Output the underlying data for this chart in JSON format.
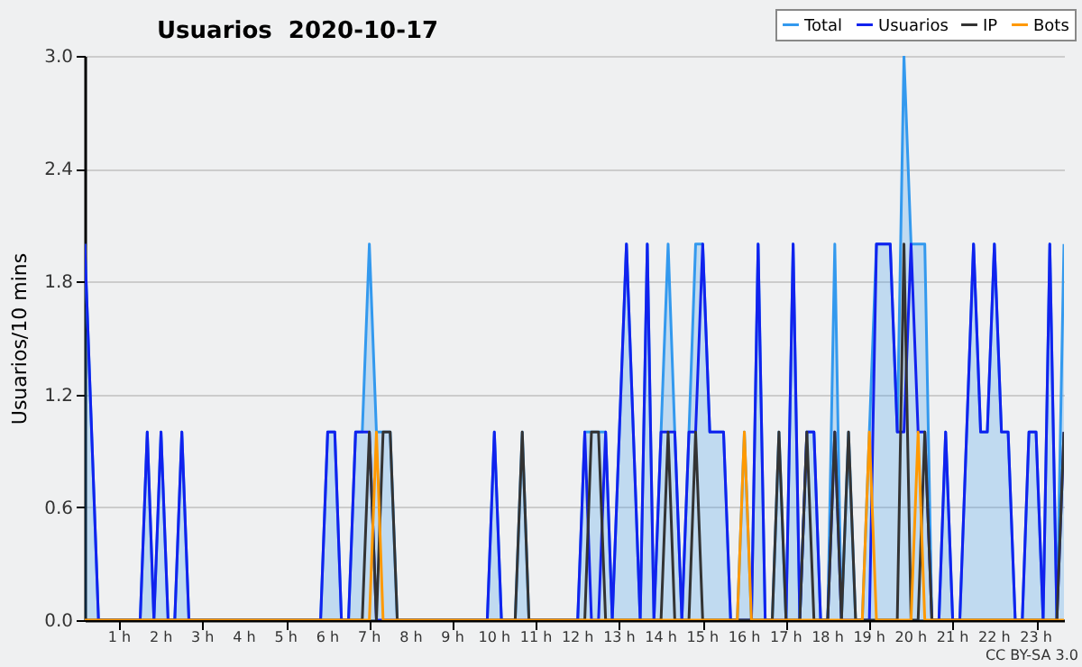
{
  "chart_data": {
    "type": "line",
    "title": "Usuarios  2020-10-17",
    "ylabel": "Usuarios/10 mins",
    "annotations": [
      "CC BY-SA 3.0"
    ],
    "xlim": [
      0.17,
      23.67
    ],
    "xticks": [
      {
        "value": 1,
        "label": "1 h"
      },
      {
        "value": 2,
        "label": "2 h"
      },
      {
        "value": 3,
        "label": "3 h"
      },
      {
        "value": 4,
        "label": "4 h"
      },
      {
        "value": 5,
        "label": "5 h"
      },
      {
        "value": 6,
        "label": "6 h"
      },
      {
        "value": 7,
        "label": "7 h"
      },
      {
        "value": 8,
        "label": "8 h"
      },
      {
        "value": 9,
        "label": "9 h"
      },
      {
        "value": 10,
        "label": "10 h"
      },
      {
        "value": 11,
        "label": "11 h"
      },
      {
        "value": 12,
        "label": "12 h"
      },
      {
        "value": 13,
        "label": "13 h"
      },
      {
        "value": 14,
        "label": "14 h"
      },
      {
        "value": 15,
        "label": "15 h"
      },
      {
        "value": 16,
        "label": "16 h"
      },
      {
        "value": 17,
        "label": "17 h"
      },
      {
        "value": 18,
        "label": "18 h"
      },
      {
        "value": 19,
        "label": "19 h"
      },
      {
        "value": 20,
        "label": "20 h"
      },
      {
        "value": 21,
        "label": "21 h"
      },
      {
        "value": 22,
        "label": "22 h"
      },
      {
        "value": 23,
        "label": "23 h"
      }
    ],
    "ylim": [
      0,
      3
    ],
    "yticks": [
      {
        "value": 0,
        "label": "0.0"
      },
      {
        "value": 0.6,
        "label": "0.6"
      },
      {
        "value": 1.2,
        "label": "1.2"
      },
      {
        "value": 1.8,
        "label": "1.8"
      },
      {
        "value": 2.4,
        "label": "2.4"
      },
      {
        "value": 3,
        "label": "3.0"
      }
    ],
    "grid": "y",
    "legend": "top right",
    "series": [
      {
        "name": "Total",
        "type": "area",
        "color": "#3399ee",
        "x": [
          0.17,
          0.5,
          1.5,
          1.67,
          1.83,
          2,
          2.17,
          2.33,
          2.5,
          2.67,
          5.83,
          6,
          6.17,
          6.33,
          6.5,
          6.67,
          6.83,
          7,
          7.17,
          7.5,
          7.67,
          9.83,
          10,
          10.17,
          10.5,
          10.67,
          10.83,
          12,
          12.17,
          12.67,
          12.83,
          13.17,
          13.5,
          13.67,
          13.83,
          14,
          14.17,
          14.33,
          14.5,
          14.67,
          14.83,
          15,
          15.17,
          15.5,
          15.67,
          15.83,
          16,
          16.17,
          16.33,
          16.5,
          16.67,
          16.83,
          17,
          17.17,
          17.33,
          17.5,
          17.67,
          17.83,
          18,
          18.17,
          18.33,
          18.5,
          18.67,
          18.83,
          19,
          19.17,
          19.5,
          19.67,
          19.83,
          20,
          20.33,
          20.5,
          20.67,
          20.83,
          21,
          21.17,
          21.5,
          21.67,
          21.83,
          22,
          22.17,
          22.33,
          22.5,
          22.67,
          22.83,
          23,
          23.17,
          23.33,
          23.5,
          23.67
        ],
        "values": [
          2,
          0,
          0,
          1,
          0,
          1,
          0,
          0,
          1,
          0,
          0,
          1,
          1,
          0,
          0,
          1,
          1,
          2,
          1,
          1,
          0,
          0,
          1,
          0,
          0,
          1,
          0,
          0,
          1,
          1,
          0,
          2,
          0,
          2,
          0,
          1,
          2,
          1,
          0,
          1,
          2,
          2,
          1,
          1,
          0,
          0,
          1,
          0,
          2,
          0,
          0,
          1,
          0,
          2,
          0,
          1,
          1,
          0,
          0,
          2,
          0,
          1,
          0,
          0,
          1,
          2,
          2,
          1,
          3,
          2,
          2,
          0,
          0,
          1,
          0,
          0,
          2,
          1,
          1,
          2,
          1,
          1,
          0,
          0,
          1,
          1,
          0,
          2,
          0,
          2
        ]
      },
      {
        "name": "Usuarios",
        "color": "#1122ee",
        "x": [
          0.17,
          0.5,
          1.5,
          1.67,
          1.83,
          2,
          2.17,
          2.33,
          2.5,
          2.67,
          5.83,
          6,
          6.17,
          6.33,
          6.5,
          6.67,
          7,
          7.17,
          9.83,
          10,
          10.17,
          12,
          12.17,
          12.33,
          12.5,
          12.67,
          12.83,
          13.17,
          13.5,
          13.67,
          13.83,
          14,
          14.33,
          14.5,
          14.67,
          14.83,
          15,
          15.17,
          15.5,
          15.67,
          16.17,
          16.33,
          16.5,
          17,
          17.17,
          17.33,
          17.5,
          17.67,
          17.83,
          18,
          18.17,
          18.33,
          19,
          19.17,
          19.5,
          19.67,
          19.83,
          20,
          20.17,
          20.33,
          20.5,
          20.67,
          20.83,
          21,
          21.17,
          21.5,
          21.67,
          21.83,
          22,
          22.17,
          22.33,
          22.5,
          22.67,
          22.83,
          23,
          23.17,
          23.33,
          23.5,
          23.67
        ],
        "values": [
          2,
          0,
          0,
          1,
          0,
          1,
          0,
          0,
          1,
          0,
          0,
          1,
          1,
          0,
          0,
          1,
          1,
          0,
          0,
          1,
          0,
          0,
          1,
          0,
          0,
          1,
          0,
          2,
          0,
          2,
          0,
          1,
          1,
          0,
          1,
          1,
          2,
          1,
          1,
          0,
          0,
          2,
          0,
          0,
          2,
          0,
          1,
          1,
          0,
          0,
          1,
          0,
          0,
          2,
          2,
          1,
          1,
          2,
          1,
          1,
          0,
          0,
          1,
          0,
          0,
          2,
          1,
          1,
          2,
          1,
          1,
          0,
          0,
          1,
          1,
          0,
          2,
          0,
          1
        ]
      },
      {
        "name": "IP",
        "color": "#333333",
        "x": [
          0.17,
          6.83,
          7,
          7.17,
          7.33,
          7.5,
          7.67,
          10.5,
          10.67,
          10.83,
          12.17,
          12.33,
          12.5,
          12.67,
          14,
          14.17,
          14.33,
          14.67,
          14.83,
          15,
          16.67,
          16.83,
          17,
          17.33,
          17.5,
          17.67,
          18,
          18.17,
          18.33,
          18.5,
          18.67,
          19.67,
          19.83,
          20,
          20.17,
          20.33,
          20.5,
          23.5,
          23.67
        ],
        "values": [
          0,
          0,
          1,
          0,
          1,
          1,
          0,
          0,
          1,
          0,
          0,
          1,
          1,
          0,
          0,
          1,
          0,
          0,
          1,
          0,
          0,
          1,
          0,
          0,
          1,
          0,
          0,
          1,
          0,
          1,
          0,
          0,
          2,
          0,
          0,
          1,
          0,
          0,
          1
        ]
      },
      {
        "name": "Bots",
        "color": "#ff9900",
        "x": [
          0.17,
          7,
          7.17,
          7.33,
          15.83,
          16,
          16.17,
          18.83,
          19,
          19.17,
          20,
          20.17,
          20.33,
          23.67
        ],
        "values": [
          0,
          0,
          1,
          0,
          0,
          1,
          0,
          0,
          1,
          0,
          0,
          1,
          0,
          0
        ]
      }
    ]
  }
}
